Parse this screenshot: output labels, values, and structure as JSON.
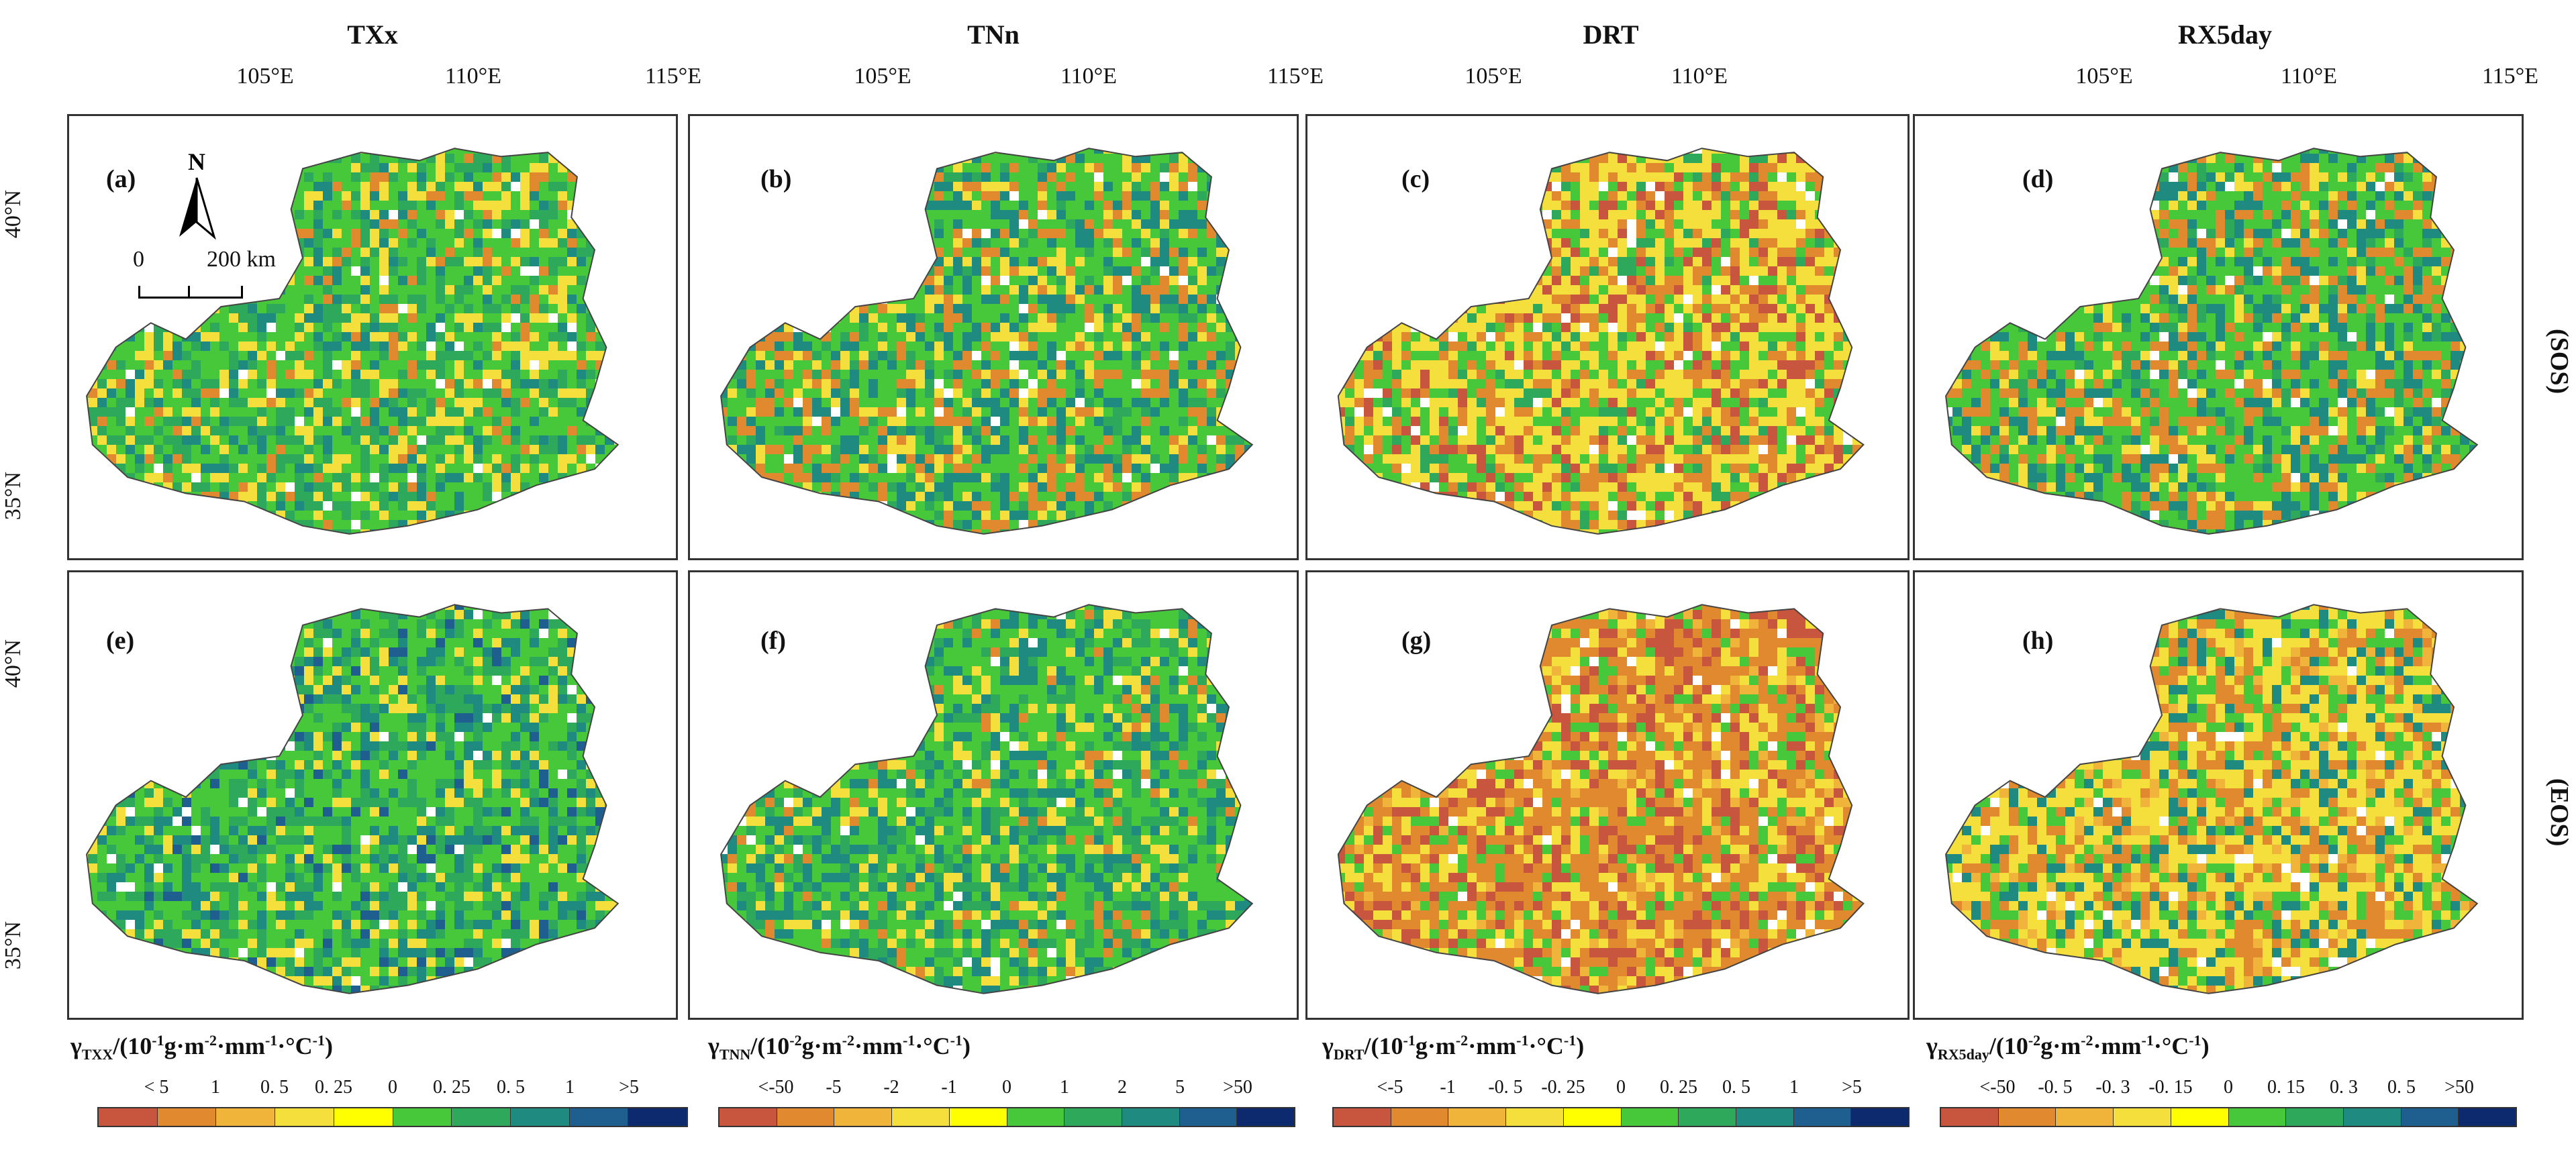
{
  "columns": [
    {
      "title": "TXx",
      "lon_ticks": [
        "105°E",
        "110°E",
        "115°E"
      ]
    },
    {
      "title": "TNn",
      "lon_ticks": [
        "105°E",
        "110°E",
        "115°E"
      ]
    },
    {
      "title": "DRT",
      "lon_ticks": [
        "105°E",
        "110°E"
      ]
    },
    {
      "title": "RX5day",
      "lon_ticks": [
        "105°E",
        "110°E",
        "115°E"
      ]
    }
  ],
  "lat_ticks": [
    "40°N",
    "35°N"
  ],
  "row_labels": [
    "(SOS)",
    "(EOS)"
  ],
  "panel_letters": [
    "(a)",
    "(b)",
    "(c)",
    "(d)",
    "(e)",
    "(f)",
    "(g)",
    "(h)"
  ],
  "north_arrow": {
    "label": "N",
    "icon": "north-arrow-icon"
  },
  "scale_bar": {
    "start": "0",
    "end": "200 km"
  },
  "palette": [
    "#c8553d",
    "#e0892f",
    "#f0b43a",
    "#f5df3c",
    "#ffff00",
    "#46c83a",
    "#2ea85a",
    "#1f8a80",
    "#1f5f8f",
    "#0d2a6e"
  ],
  "legends": [
    {
      "symbol": "γ",
      "sub": "TXX",
      "unit_pre": "/(10",
      "exp": "-1",
      "unit_post": "g·m",
      "exp2": "-2",
      "unit_post2": "·mm",
      "exp3": "-1",
      "unit_post3": "·°C",
      "exp4": "-1",
      "close": ")",
      "labels": [
        "< 5",
        "1",
        "0. 5",
        "0. 25",
        "0",
        "0. 25",
        "0. 5",
        "1",
        ">5"
      ]
    },
    {
      "symbol": "γ",
      "sub": "TNN",
      "unit_pre": "/(10",
      "exp": "-2",
      "unit_post": "g·m",
      "exp2": "-2",
      "unit_post2": "·mm",
      "exp3": "-1",
      "unit_post3": "·°C",
      "exp4": "-1",
      "close": ")",
      "labels": [
        "<-50",
        "-5",
        "-2",
        "-1",
        "0",
        "1",
        "2",
        "5",
        ">50"
      ]
    },
    {
      "symbol": "γ",
      "sub": "DRT",
      "unit_pre": "/(10",
      "exp": "-1",
      "unit_post": "g·m",
      "exp2": "-2",
      "unit_post2": "·mm",
      "exp3": "-1",
      "unit_post3": "·°C",
      "exp4": "-1",
      "close": ")",
      "labels": [
        "<-5",
        "-1",
        "-0. 5",
        "-0. 25",
        "0",
        "0. 25",
        "0. 5",
        "1",
        ">5"
      ]
    },
    {
      "symbol": "γ",
      "sub": "RX5day",
      "unit_pre": "/(10",
      "exp": "-2",
      "unit_post": "g·m",
      "exp2": "-2",
      "unit_post2": "·mm",
      "exp3": "-1",
      "unit_post3": "·°C",
      "exp4": "-1",
      "close": ")",
      "labels": [
        "<-50",
        "-0. 5",
        "-0. 3",
        "-0. 15",
        "0",
        "0. 15",
        "0. 3",
        "0. 5",
        ">50"
      ]
    }
  ],
  "panel_schemes": [
    {
      "id": "a",
      "dominant": [
        "#46c83a",
        "#2ea85a",
        "#f5df3c",
        "#1f8a80",
        "#e0892f"
      ]
    },
    {
      "id": "b",
      "dominant": [
        "#46c83a",
        "#1f8a80",
        "#e0892f",
        "#f5df3c",
        "#2ea85a"
      ]
    },
    {
      "id": "c",
      "dominant": [
        "#f5df3c",
        "#e0892f",
        "#46c83a",
        "#c8553d",
        "#2ea85a"
      ]
    },
    {
      "id": "d",
      "dominant": [
        "#46c83a",
        "#1f8a80",
        "#e0892f",
        "#f5df3c",
        "#2ea85a"
      ]
    },
    {
      "id": "e",
      "dominant": [
        "#46c83a",
        "#2ea85a",
        "#1f8a80",
        "#f5df3c",
        "#1f5f8f"
      ]
    },
    {
      "id": "f",
      "dominant": [
        "#46c83a",
        "#1f8a80",
        "#2ea85a",
        "#f5df3c",
        "#e0892f"
      ]
    },
    {
      "id": "g",
      "dominant": [
        "#e0892f",
        "#f5df3c",
        "#c8553d",
        "#46c83a",
        "#f0b43a"
      ]
    },
    {
      "id": "h",
      "dominant": [
        "#f5df3c",
        "#e0892f",
        "#46c83a",
        "#1f8a80",
        "#f0b43a"
      ]
    }
  ]
}
